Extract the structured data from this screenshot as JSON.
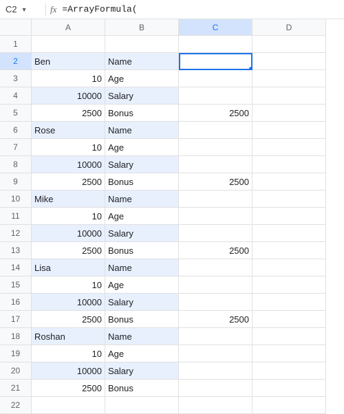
{
  "formulaBar": {
    "cellRef": "C2",
    "formula": "=ArrayFormula("
  },
  "columns": [
    "A",
    "B",
    "C",
    "D"
  ],
  "activeCol": "C",
  "activeRow": 2,
  "rows": [
    {
      "n": 1,
      "a": "",
      "b": "",
      "c": "",
      "band": false,
      "aType": "txt"
    },
    {
      "n": 2,
      "a": "Ben",
      "b": "Name",
      "c": "",
      "band": true,
      "aType": "txt",
      "active": true
    },
    {
      "n": 3,
      "a": "10",
      "b": "Age",
      "c": "",
      "band": false,
      "aType": "num"
    },
    {
      "n": 4,
      "a": "10000",
      "b": "Salary",
      "c": "",
      "band": true,
      "aType": "num"
    },
    {
      "n": 5,
      "a": "2500",
      "b": "Bonus",
      "c": "2500",
      "band": false,
      "aType": "num"
    },
    {
      "n": 6,
      "a": "Rose",
      "b": "Name",
      "c": "",
      "band": true,
      "aType": "txt"
    },
    {
      "n": 7,
      "a": "10",
      "b": "Age",
      "c": "",
      "band": false,
      "aType": "num"
    },
    {
      "n": 8,
      "a": "10000",
      "b": "Salary",
      "c": "",
      "band": true,
      "aType": "num"
    },
    {
      "n": 9,
      "a": "2500",
      "b": "Bonus",
      "c": "2500",
      "band": false,
      "aType": "num"
    },
    {
      "n": 10,
      "a": "Mike",
      "b": "Name",
      "c": "",
      "band": true,
      "aType": "txt"
    },
    {
      "n": 11,
      "a": "10",
      "b": "Age",
      "c": "",
      "band": false,
      "aType": "num"
    },
    {
      "n": 12,
      "a": "10000",
      "b": "Salary",
      "c": "",
      "band": true,
      "aType": "num"
    },
    {
      "n": 13,
      "a": "2500",
      "b": "Bonus",
      "c": "2500",
      "band": false,
      "aType": "num"
    },
    {
      "n": 14,
      "a": "Lisa",
      "b": "Name",
      "c": "",
      "band": true,
      "aType": "txt"
    },
    {
      "n": 15,
      "a": "10",
      "b": "Age",
      "c": "",
      "band": false,
      "aType": "num"
    },
    {
      "n": 16,
      "a": "10000",
      "b": "Salary",
      "c": "",
      "band": true,
      "aType": "num"
    },
    {
      "n": 17,
      "a": "2500",
      "b": "Bonus",
      "c": "2500",
      "band": false,
      "aType": "num"
    },
    {
      "n": 18,
      "a": "Roshan",
      "b": "Name",
      "c": "",
      "band": true,
      "aType": "txt"
    },
    {
      "n": 19,
      "a": "10",
      "b": "Age",
      "c": "",
      "band": false,
      "aType": "num"
    },
    {
      "n": 20,
      "a": "10000",
      "b": "Salary",
      "c": "",
      "band": true,
      "aType": "num"
    },
    {
      "n": 21,
      "a": "2500",
      "b": "Bonus",
      "c": "",
      "band": false,
      "aType": "num"
    },
    {
      "n": 22,
      "a": "",
      "b": "",
      "c": "",
      "band": false,
      "aType": "txt"
    }
  ]
}
